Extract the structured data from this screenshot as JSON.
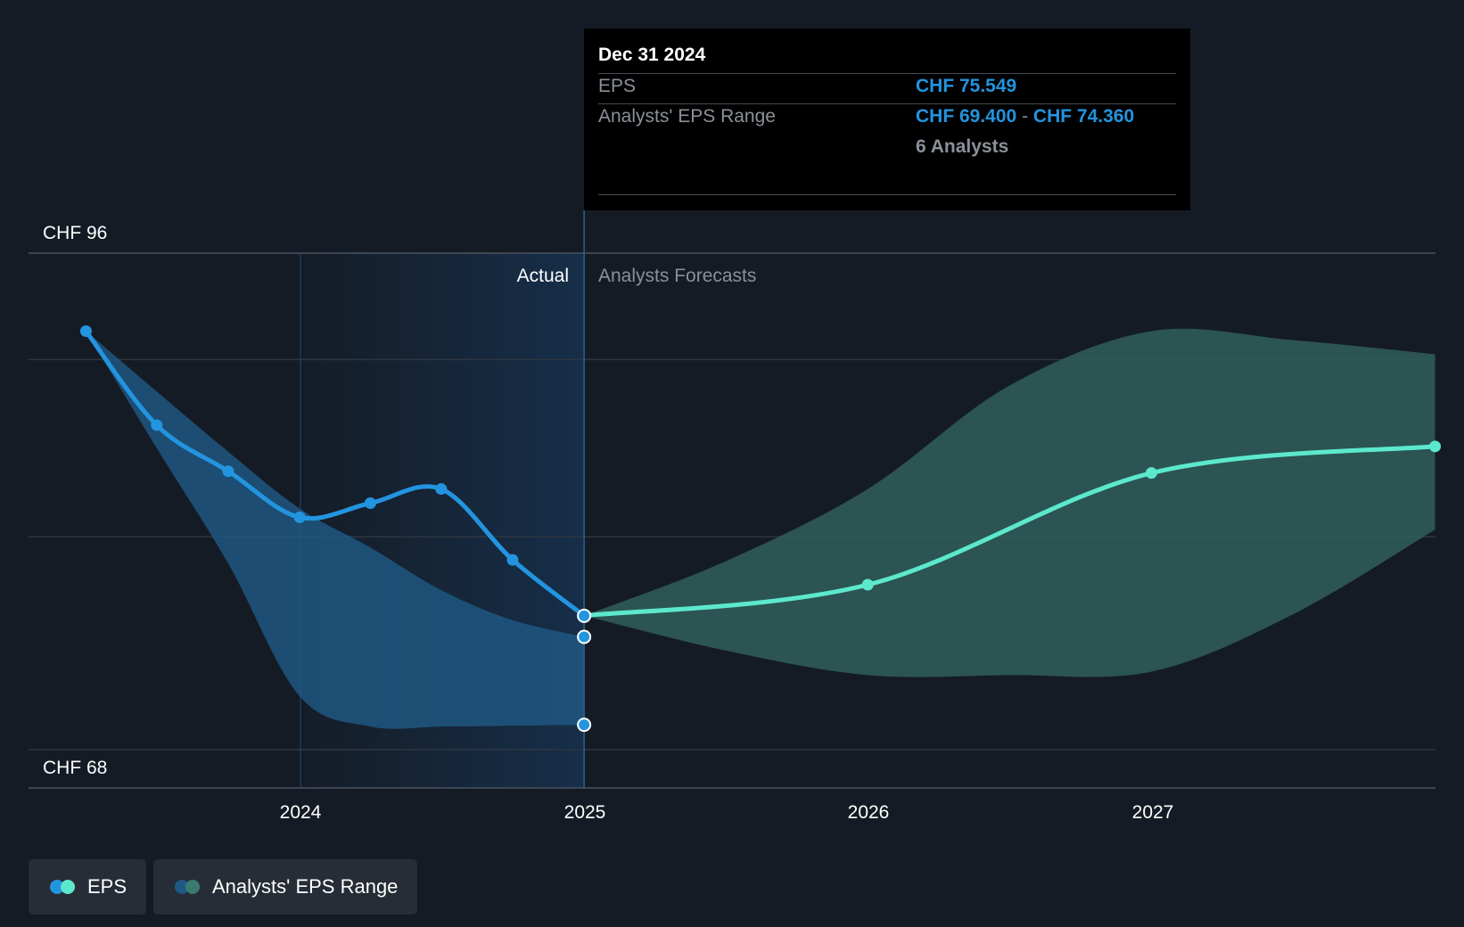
{
  "chart_data": {
    "type": "line",
    "x_axis": {
      "ticks": [
        "2024",
        "2025",
        "2026",
        "2027"
      ]
    },
    "y_axis": {
      "labels": [
        "CHF 96",
        "CHF 68"
      ],
      "range": [
        68,
        96
      ]
    },
    "regions": {
      "actual_label": "Actual",
      "forecast_label": "Analysts Forecasts"
    },
    "series": [
      {
        "name": "EPS",
        "role": "actual",
        "color": "#2394df",
        "points": [
          {
            "x": "2023-03-31",
            "y": 91.6
          },
          {
            "x": "2023-06-30",
            "y": 86.3
          },
          {
            "x": "2023-09-30",
            "y": 83.7
          },
          {
            "x": "2023-12-31",
            "y": 81.1
          },
          {
            "x": "2024-03-31",
            "y": 81.9
          },
          {
            "x": "2024-06-30",
            "y": 82.7
          },
          {
            "x": "2024-09-30",
            "y": 78.7
          },
          {
            "x": "2024-12-31",
            "y": 75.549
          }
        ]
      },
      {
        "name": "EPS",
        "role": "forecast",
        "color": "#5ce8cc",
        "points": [
          {
            "x": "2024-12-31",
            "y": 75.549
          },
          {
            "x": "2025-12-31",
            "y": 77.3
          },
          {
            "x": "2026-12-31",
            "y": 83.6
          },
          {
            "x": "2027-12-31",
            "y": 85.1
          }
        ]
      },
      {
        "name": "Analysts' EPS Range",
        "role": "actual-range",
        "color": "#2394df",
        "band": [
          {
            "x": "2023-03-31",
            "low": 91.6,
            "high": 91.6
          },
          {
            "x": "2023-06-30",
            "low": 85.0,
            "high": 88.2
          },
          {
            "x": "2023-09-30",
            "low": 78.5,
            "high": 84.8
          },
          {
            "x": "2023-12-31",
            "low": 71.0,
            "high": 81.6
          },
          {
            "x": "2024-03-31",
            "low": 69.3,
            "high": 79.4
          },
          {
            "x": "2024-06-30",
            "low": 69.3,
            "high": 77.0
          },
          {
            "x": "2024-09-30",
            "low": 69.35,
            "high": 75.3
          },
          {
            "x": "2024-12-31",
            "low": 69.4,
            "high": 74.36
          }
        ]
      },
      {
        "name": "Analysts' EPS Range",
        "role": "forecast-range",
        "color": "#5ce8cc",
        "band": [
          {
            "x": "2024-12-31",
            "low": 75.549,
            "high": 75.549
          },
          {
            "x": "2025-06-30",
            "low": 73.6,
            "high": 78.6
          },
          {
            "x": "2025-12-31",
            "low": 72.2,
            "high": 82.7
          },
          {
            "x": "2026-06-30",
            "low": 72.2,
            "high": 88.5
          },
          {
            "x": "2026-12-31",
            "low": 72.4,
            "high": 91.6
          },
          {
            "x": "2027-06-30",
            "low": 75.6,
            "high": 91.1
          },
          {
            "x": "2027-12-31",
            "low": 80.4,
            "high": 90.3
          }
        ]
      }
    ],
    "grid": true
  },
  "tooltip": {
    "date": "Dec 31 2024",
    "eps_label": "EPS",
    "eps_value": "CHF 75.549",
    "range_label": "Analysts' EPS Range",
    "range_low": "CHF 69.400",
    "range_sep": "-",
    "range_high": "CHF 74.360",
    "analysts": "6 Analysts"
  },
  "legend": {
    "items": [
      {
        "label": "EPS",
        "colors": [
          "#2394df",
          "#5ce8cc"
        ]
      },
      {
        "label": "Analysts' EPS Range",
        "colors": [
          "#1f5a86",
          "#3c7a70"
        ]
      }
    ]
  }
}
